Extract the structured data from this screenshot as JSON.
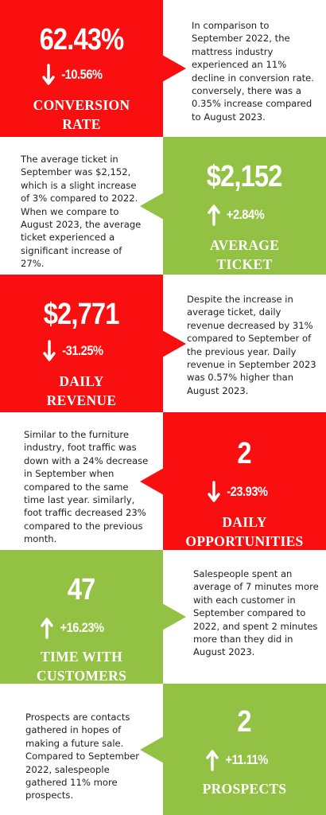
{
  "colors": {
    "red": "#f90f0f",
    "green": "#92c143",
    "white": "#ffffff"
  },
  "sections": [
    {
      "value": "62.43%",
      "direction": "down",
      "arrow_icon": "arrow-down-icon",
      "change": "-10.56%",
      "label_line1": "CONVERSION",
      "label_line2": "RATE",
      "description": "In comparison to September 2022, the mattress industry experienced an 11% decline in conversion rate. conversely, there was a 0.35% increase compared to August 2023."
    },
    {
      "value": "$2,152",
      "direction": "up",
      "arrow_icon": "arrow-up-icon",
      "change": "+2.84%",
      "label_line1": "AVERAGE",
      "label_line2": "TICKET",
      "description": "The average ticket in September was $2,152, which is a slight increase of 3% compared to 2022. When we compare to August 2023, the average ticket experienced a significant increase of 27%."
    },
    {
      "value": "$2,771",
      "direction": "down",
      "arrow_icon": "arrow-down-icon",
      "change": "-31.25%",
      "label_line1": "DAILY",
      "label_line2": "REVENUE",
      "description": "Despite the increase in average ticket, daily revenue decreased by 31% compared to September of the previous year. Daily revenue in September 2023 was 0.57% higher than August 2023."
    },
    {
      "value": "2",
      "direction": "down",
      "arrow_icon": "arrow-down-icon",
      "change": "-23.93%",
      "label_line1": "DAILY",
      "label_line2": "OPPORTUNITIES",
      "description": "Similar to the furniture industry, foot traffic was down with a 24% decrease in September when compared to the same time last year. similarly, foot traffic decreased 23% compared to the previous month."
    },
    {
      "value": "47",
      "direction": "up",
      "arrow_icon": "arrow-up-icon",
      "change": "+16.23%",
      "label_line1": "TIME WITH",
      "label_line2": "CUSTOMERS",
      "description": "Salespeople spent an average of 7 minutes more with each customer in September compared to 2022, and spent 2 minutes more than they did in August 2023."
    },
    {
      "value": "2",
      "direction": "up",
      "arrow_icon": "arrow-up-icon",
      "change": "+11.11%",
      "label_line1": "PROSPECTS",
      "label_line2": "",
      "description": "Prospects are contacts gathered in hopes of making a future sale. Compared to September 2022, salespeople gathered 11% more prospects."
    }
  ]
}
